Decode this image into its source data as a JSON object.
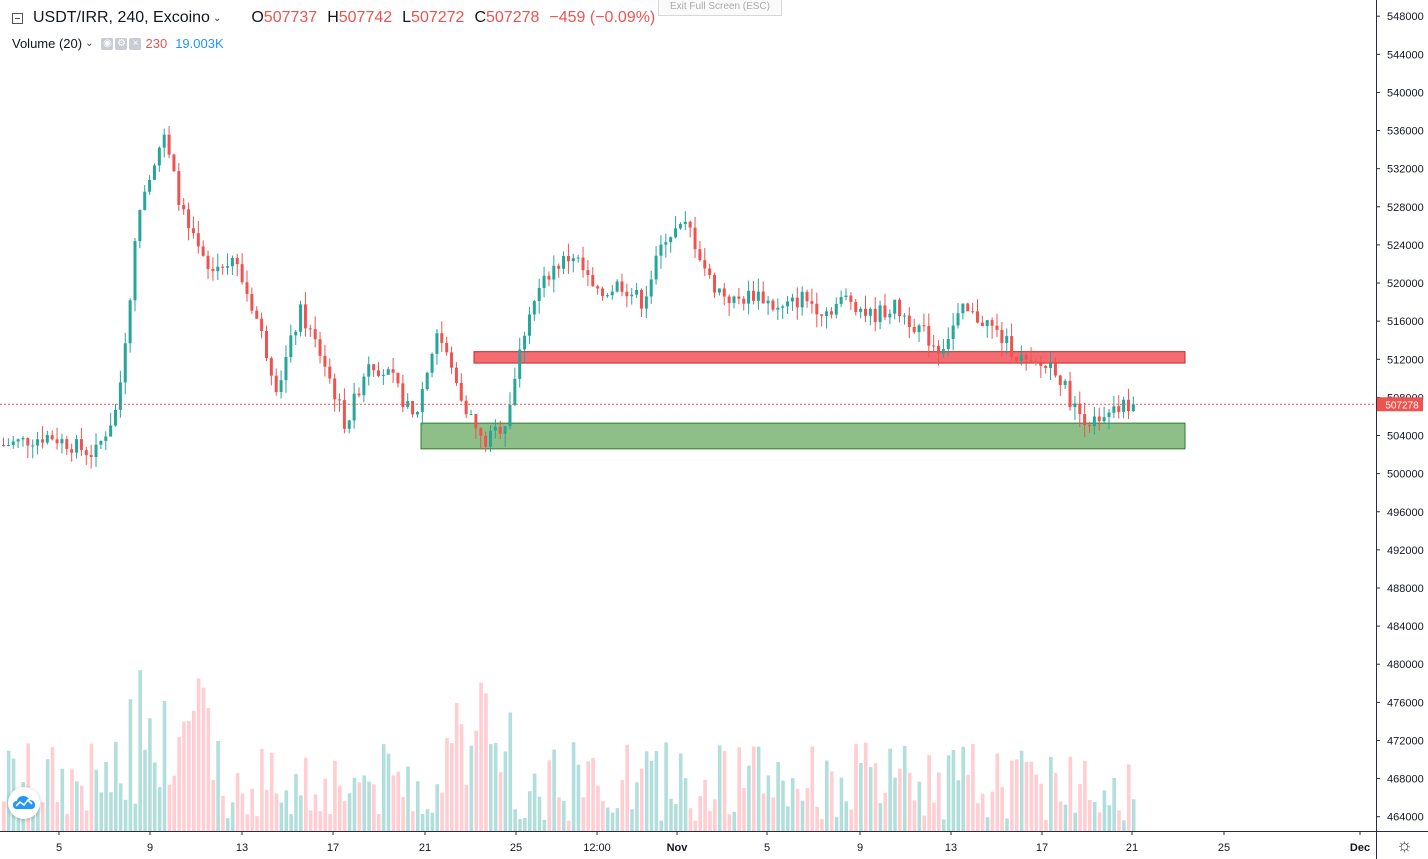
{
  "header": {
    "symbol": "USDT/IRR, 240, Excoino",
    "open_label": "O",
    "open": "507737",
    "high_label": "H",
    "high": "507742",
    "low_label": "L",
    "low": "507272",
    "close_label": "C",
    "close": "507278",
    "change": "−459 (−0.09%)"
  },
  "volume_indicator": {
    "label": "Volume (20)",
    "value_a": "230",
    "value_b": "19.003K"
  },
  "exit_fullscreen": "Exit Full Screen (ESC)",
  "colors": {
    "up": "#26a69a",
    "down": "#ef5350",
    "vol_up": "#b2dfdb",
    "vol_down": "#ffcdd2",
    "resistance_zone": "#f56b72",
    "support_zone": "#8fbf88",
    "price_line": "#ef5350"
  },
  "icons": {
    "collapse": "collapse-icon",
    "dropdown": "chevron-down-icon",
    "logo": "tradingview-logo-icon",
    "settings": "gear-icon"
  },
  "chart_data": {
    "type": "candlestick",
    "title": "USDT/IRR, 240, Excoino",
    "y_ticks": [
      548000,
      544000,
      540000,
      536000,
      532000,
      528000,
      524000,
      520000,
      516000,
      512000,
      508000,
      504000,
      500000,
      496000,
      492000,
      488000,
      484000,
      480000,
      476000,
      472000,
      468000,
      464000
    ],
    "y_tick_labels": [
      "548000",
      "544000",
      "540000",
      "536000",
      "532000",
      "528000",
      "524000",
      "520000",
      "516000",
      "512000",
      "508000",
      "504000",
      "500000",
      "496000",
      "492000",
      "488000",
      "484000",
      "480000",
      "476000",
      "472000",
      "468000",
      "464000"
    ],
    "ylim": [
      462500,
      549700
    ],
    "x_ticks": [
      "5",
      "9",
      "13",
      "17",
      "21",
      "25",
      "12:00",
      "Nov",
      "5",
      "9",
      "13",
      "17",
      "21",
      "25",
      "Dec"
    ],
    "last_price": "507278",
    "zones": [
      {
        "name": "resistance",
        "from": 511600,
        "to": 512800,
        "start": "Oct 23",
        "end": "Nov 24"
      },
      {
        "name": "support",
        "from": 502600,
        "to": 505300,
        "start": "Oct 21",
        "end": "Nov 24"
      }
    ],
    "path": [
      [
        0,
        503000
      ],
      [
        4,
        504000
      ],
      [
        8,
        502000
      ],
      [
        10,
        507000
      ],
      [
        12,
        529000
      ],
      [
        14,
        535500
      ],
      [
        16,
        526000
      ],
      [
        18,
        521000
      ],
      [
        20,
        523000
      ],
      [
        22,
        517000
      ],
      [
        24,
        509000
      ],
      [
        26,
        517000
      ],
      [
        28,
        512000
      ],
      [
        30,
        505000
      ],
      [
        32,
        512000
      ],
      [
        34,
        510000
      ],
      [
        36,
        505500
      ],
      [
        38,
        515000
      ],
      [
        40,
        508500
      ],
      [
        42,
        503000
      ],
      [
        44,
        505500
      ],
      [
        46,
        517000
      ],
      [
        48,
        521500
      ],
      [
        50,
        523000
      ],
      [
        52,
        518500
      ],
      [
        54,
        520000
      ],
      [
        56,
        518000
      ],
      [
        58,
        525000
      ],
      [
        60,
        526000
      ],
      [
        62,
        520000
      ],
      [
        64,
        518000
      ],
      [
        66,
        519000
      ],
      [
        68,
        517000
      ],
      [
        70,
        518500
      ],
      [
        72,
        517000
      ],
      [
        74,
        518500
      ],
      [
        76,
        516500
      ],
      [
        78,
        517500
      ],
      [
        80,
        515500
      ],
      [
        82,
        513000
      ],
      [
        84,
        517000
      ],
      [
        86,
        516000
      ],
      [
        88,
        513500
      ],
      [
        90,
        511000
      ],
      [
        92,
        511500
      ],
      [
        94,
        506500
      ],
      [
        96,
        505000
      ],
      [
        98,
        507000
      ],
      [
        99,
        507278
      ]
    ]
  }
}
